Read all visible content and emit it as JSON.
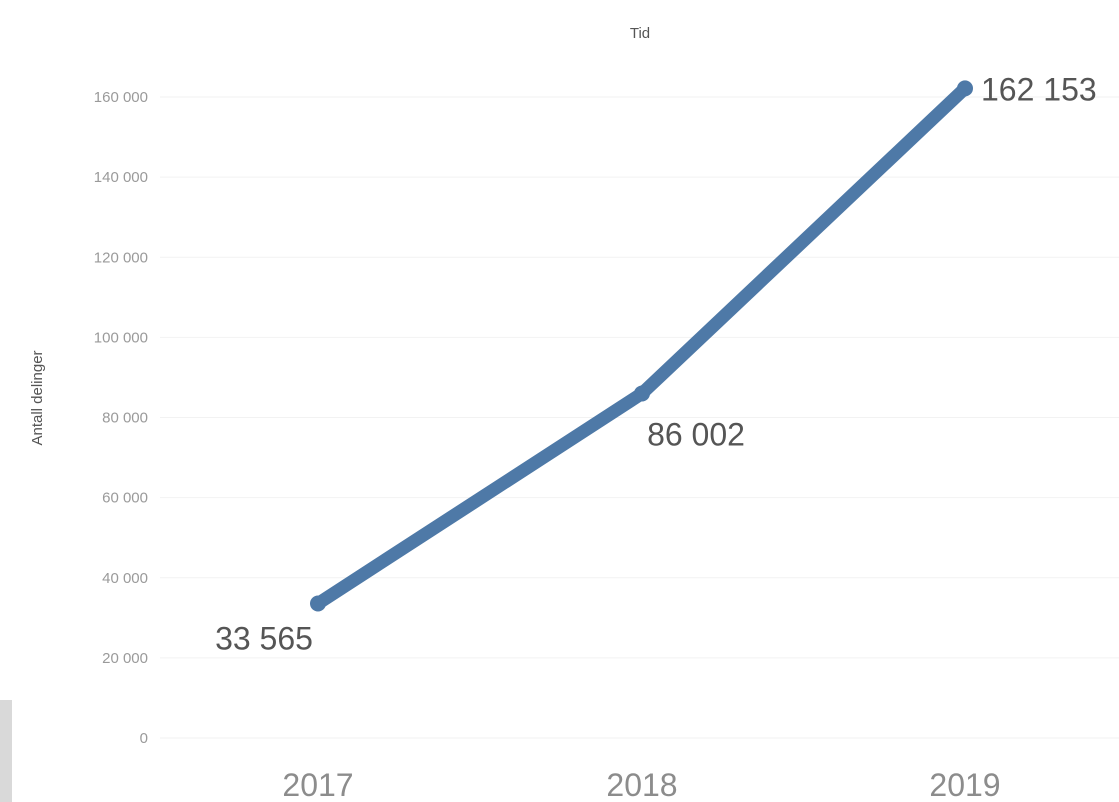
{
  "chart_data": {
    "type": "line",
    "title": "",
    "x_axis_title": "Tid",
    "ylabel": "Antall delinger",
    "x": [
      "2017",
      "2018",
      "2019"
    ],
    "series": [
      {
        "values": [
          33565,
          86002,
          162153
        ],
        "data_labels": [
          "33 565",
          "86 002",
          "162 153"
        ]
      }
    ],
    "ylim": [
      0,
      170000
    ],
    "y_ticks": [
      0,
      20000,
      40000,
      60000,
      80000,
      100000,
      120000,
      140000,
      160000
    ],
    "y_tick_labels": [
      "0",
      "20 000",
      "40 000",
      "60 000",
      "80 000",
      "100 000",
      "120 000",
      "140 000",
      "160 000"
    ],
    "grid": true,
    "legend": "none",
    "colors": {
      "line": "#4e79a7",
      "grid": "#f2f2f2",
      "tick_text": "#9a9a9a",
      "label_text": "#555555"
    }
  }
}
